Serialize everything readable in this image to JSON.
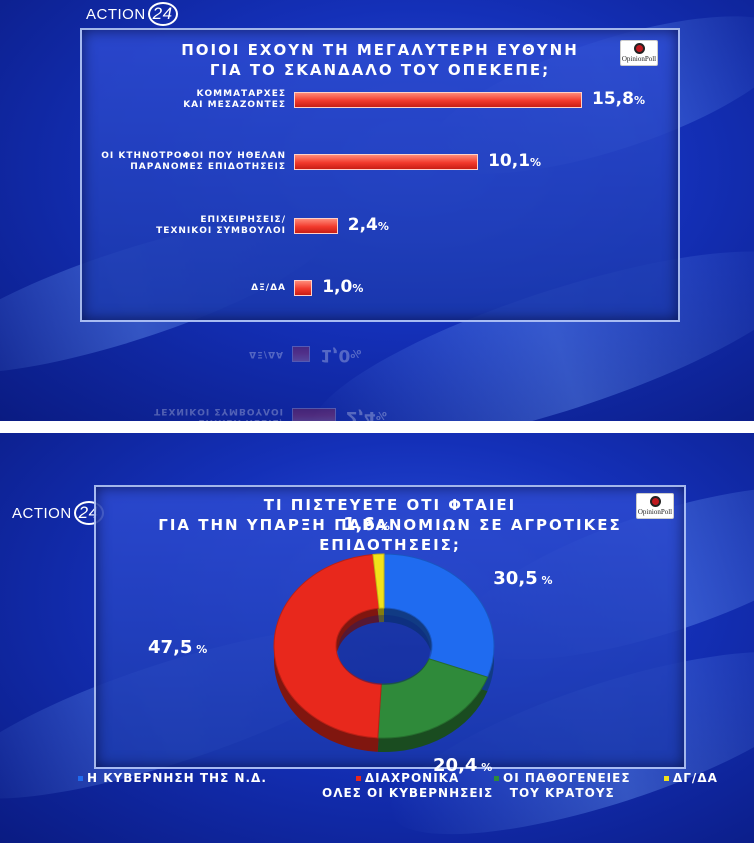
{
  "brand": {
    "name": "ACTION",
    "number": "24"
  },
  "poll_badge": "OpinionPoll",
  "chart_data": [
    {
      "type": "bar",
      "orientation": "horizontal",
      "title_lines": [
        "ΠΟΙΟΙ ΕΧΟΥΝ ΤΗ ΜΕΓΑΛΥΤΕΡΗ ΕΥΘΥΝΗ",
        "ΓΙΑ ΤΟ ΣΚΑΝΔΑΛΟ ΤΟΥ ΟΠΕΚΕΠΕ;"
      ],
      "categories": [
        [
          "ΚΟΜΜΑΤΑΡΧΕΣ",
          "ΚΑΙ ΜΕΣΑΖΟΝΤΕΣ"
        ],
        [
          "ΟΙ ΚΤΗΝΟΤΡΟΦΟΙ ΠΟΥ ΗΘΕΛΑΝ",
          "ΠΑΡΑΝΟΜΕΣ ΕΠΙΔΟΤΗΣΕΙΣ"
        ],
        [
          "ΕΠΙΧΕΙΡΗΣΕΙΣ/",
          "ΤΕΧΝΙΚΟΙ ΣΥΜΒΟΥΛΟΙ"
        ],
        [
          "ΔΞ/ΔΑ"
        ]
      ],
      "values": [
        15.8,
        10.1,
        2.4,
        1.0
      ],
      "value_labels": [
        "15,8",
        "10,1",
        "2,4",
        "1,0"
      ],
      "unit": "%",
      "bar_color": "#f23a2c"
    },
    {
      "type": "pie",
      "style": "donut",
      "title_lines": [
        "ΤΙ ΠΙΣΤΕΥΕΤΕ ΟΤΙ ΦΤΑΙΕΙ",
        "ΓΙΑ ΤΗΝ ΥΠΑΡΞΗ ΠΑΡΑΝΟΜΙΩΝ ΣΕ ΑΓΡΟΤΙΚΕΣ ΕΠΙΔΟΤΗΣΕΙΣ;"
      ],
      "slices": [
        {
          "label": [
            "Η ΚΥΒΕΡΝΗΣΗ ΤΗΣ Ν.Δ."
          ],
          "value": 30.5,
          "value_label": "30,5",
          "color": "#1f6bf0"
        },
        {
          "label": [
            "ΟΙ ΠΑΘΟΓΕΝΕΙΕΣ",
            "ΤΟΥ ΚΡΑΤΟΥΣ"
          ],
          "value": 20.4,
          "value_label": "20,4",
          "color": "#2f8a3a"
        },
        {
          "label": [
            "ΔΙΑΧΡΟΝΙΚΑ",
            "ΟΛΕΣ ΟΙ ΚΥΒΕΡΝΗΣΕΙΣ"
          ],
          "value": 47.5,
          "value_label": "47,5",
          "color": "#e8281c"
        },
        {
          "label": [
            "ΔΓ/ΔΑ"
          ],
          "value": 1.6,
          "value_label": "1,6",
          "color": "#f2e21a"
        }
      ],
      "legend_order": [
        0,
        2,
        1,
        3
      ],
      "legend_position": "bottom",
      "unit": "%"
    }
  ]
}
